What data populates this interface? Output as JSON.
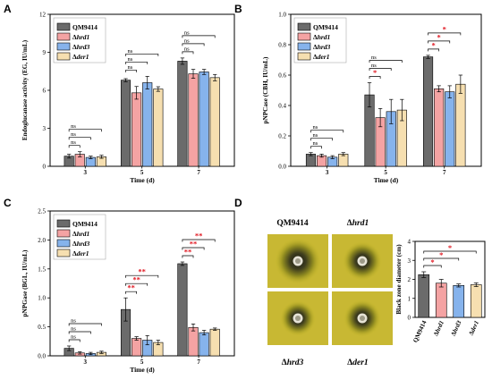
{
  "legend": [
    "QM9414",
    "Δhrd1",
    "Δhrd3",
    "Δder1"
  ],
  "colors": [
    "#6b6b6b",
    "#f4a3a3",
    "#86b3ec",
    "#f6dfb0"
  ],
  "chart_data": [
    {
      "panel": "A",
      "type": "bar",
      "xlabel": "Time (d)",
      "ylabel": "Endoglucanase activity (EG, IU/mL)",
      "categories": [
        "3",
        "5",
        "7"
      ],
      "ylim": [
        0,
        12
      ],
      "yticks": [
        "0",
        "3",
        "6",
        "9",
        "12"
      ],
      "series": [
        {
          "name": "QM9414",
          "values": [
            0.8,
            6.8,
            8.3
          ],
          "errors": [
            0.15,
            0.12,
            0.25
          ]
        },
        {
          "name": "Δhrd1",
          "values": [
            0.95,
            5.8,
            7.3
          ],
          "errors": [
            0.2,
            0.5,
            0.35
          ]
        },
        {
          "name": "Δhrd3",
          "values": [
            0.7,
            6.6,
            7.45
          ],
          "errors": [
            0.1,
            0.5,
            0.2
          ]
        },
        {
          "name": "Δder1",
          "values": [
            0.75,
            6.1,
            7.0
          ],
          "errors": [
            0.12,
            0.18,
            0.25
          ]
        }
      ],
      "significance": [
        {
          "cat": 0,
          "from": 0,
          "to": 1,
          "label": "ns",
          "level": 0
        },
        {
          "cat": 0,
          "from": 0,
          "to": 2,
          "label": "ns",
          "level": 1
        },
        {
          "cat": 0,
          "from": 0,
          "to": 3,
          "label": "ns",
          "level": 2
        },
        {
          "cat": 1,
          "from": 0,
          "to": 1,
          "label": "ns",
          "level": 0
        },
        {
          "cat": 1,
          "from": 0,
          "to": 2,
          "label": "ns",
          "level": 1
        },
        {
          "cat": 1,
          "from": 0,
          "to": 3,
          "label": "ns",
          "level": 2
        },
        {
          "cat": 2,
          "from": 0,
          "to": 1,
          "label": "ns",
          "level": 0
        },
        {
          "cat": 2,
          "from": 0,
          "to": 2,
          "label": "ns",
          "level": 1
        },
        {
          "cat": 2,
          "from": 0,
          "to": 3,
          "label": "ns",
          "level": 2
        }
      ]
    },
    {
      "panel": "B",
      "type": "bar",
      "xlabel": "Time (d)",
      "ylabel": "pNPCase (CBH, IU/mL)",
      "categories": [
        "3",
        "5",
        "7"
      ],
      "ylim": [
        0,
        1.0
      ],
      "yticks": [
        "0.0",
        "0.2",
        "0.4",
        "0.6",
        "0.8",
        "1.0"
      ],
      "series": [
        {
          "name": "QM9414",
          "values": [
            0.08,
            0.47,
            0.72
          ],
          "errors": [
            0.01,
            0.08,
            0.01
          ]
        },
        {
          "name": "Δhrd1",
          "values": [
            0.07,
            0.32,
            0.51
          ],
          "errors": [
            0.01,
            0.06,
            0.02
          ]
        },
        {
          "name": "Δhrd3",
          "values": [
            0.06,
            0.36,
            0.49
          ],
          "errors": [
            0.01,
            0.08,
            0.04
          ]
        },
        {
          "name": "Δder1",
          "values": [
            0.08,
            0.37,
            0.54
          ],
          "errors": [
            0.01,
            0.07,
            0.06
          ]
        }
      ],
      "significance": [
        {
          "cat": 0,
          "from": 0,
          "to": 1,
          "label": "ns",
          "level": 0
        },
        {
          "cat": 0,
          "from": 0,
          "to": 2,
          "label": "ns",
          "level": 1
        },
        {
          "cat": 0,
          "from": 0,
          "to": 3,
          "label": "ns",
          "level": 2
        },
        {
          "cat": 1,
          "from": 0,
          "to": 1,
          "label": "*",
          "level": 0
        },
        {
          "cat": 1,
          "from": 0,
          "to": 2,
          "label": "ns",
          "level": 1
        },
        {
          "cat": 1,
          "from": 0,
          "to": 3,
          "label": "ns",
          "level": 2
        },
        {
          "cat": 2,
          "from": 0,
          "to": 1,
          "label": "*",
          "level": 0
        },
        {
          "cat": 2,
          "from": 0,
          "to": 2,
          "label": "*",
          "level": 1
        },
        {
          "cat": 2,
          "from": 0,
          "to": 3,
          "label": "*",
          "level": 2
        }
      ]
    },
    {
      "panel": "C",
      "type": "bar",
      "xlabel": "Time (d)",
      "ylabel": "pNPGase (BGL, IU/mL)",
      "categories": [
        "3",
        "5",
        "7"
      ],
      "ylim": [
        0,
        2.5
      ],
      "yticks": [
        "0.0",
        "0.5",
        "1.0",
        "1.5",
        "2.0",
        "2.5"
      ],
      "series": [
        {
          "name": "QM9414",
          "values": [
            0.13,
            0.8,
            1.59
          ],
          "errors": [
            0.04,
            0.2,
            0.03
          ]
        },
        {
          "name": "Δhrd1",
          "values": [
            0.05,
            0.3,
            0.49
          ],
          "errors": [
            0.02,
            0.03,
            0.06
          ]
        },
        {
          "name": "Δhrd3",
          "values": [
            0.04,
            0.27,
            0.4
          ],
          "errors": [
            0.02,
            0.08,
            0.04
          ]
        },
        {
          "name": "Δder1",
          "values": [
            0.06,
            0.23,
            0.46
          ],
          "errors": [
            0.02,
            0.04,
            0.02
          ]
        }
      ],
      "significance": [
        {
          "cat": 0,
          "from": 0,
          "to": 1,
          "label": "ns",
          "level": 0
        },
        {
          "cat": 0,
          "from": 0,
          "to": 2,
          "label": "ns",
          "level": 1
        },
        {
          "cat": 0,
          "from": 0,
          "to": 3,
          "label": "ns",
          "level": 2
        },
        {
          "cat": 1,
          "from": 0,
          "to": 1,
          "label": "**",
          "level": 0
        },
        {
          "cat": 1,
          "from": 0,
          "to": 2,
          "label": "**",
          "level": 1
        },
        {
          "cat": 1,
          "from": 0,
          "to": 3,
          "label": "**",
          "level": 2
        },
        {
          "cat": 2,
          "from": 0,
          "to": 1,
          "label": "**",
          "level": 0
        },
        {
          "cat": 2,
          "from": 0,
          "to": 2,
          "label": "**",
          "level": 1
        },
        {
          "cat": 2,
          "from": 0,
          "to": 3,
          "label": "**",
          "level": 2
        }
      ]
    },
    {
      "panel": "D",
      "type": "bar",
      "xlabel": "",
      "ylabel": "Black zone diameter (cm)",
      "categories": [
        "QM9414",
        "Δhrd1",
        "Δhrd3",
        "Δder1"
      ],
      "ylim": [
        0,
        4
      ],
      "yticks": [
        "0",
        "1",
        "2",
        "3",
        "4"
      ],
      "values": [
        2.25,
        1.8,
        1.68,
        1.72
      ],
      "errors": [
        0.15,
        0.2,
        0.08,
        0.1
      ],
      "significance": [
        {
          "from": 0,
          "to": 1,
          "label": "*",
          "level": 0
        },
        {
          "from": 0,
          "to": 2,
          "label": "*",
          "level": 1
        },
        {
          "from": 0,
          "to": 3,
          "label": "*",
          "level": 2
        }
      ]
    }
  ],
  "plates": [
    "QM9414",
    "Δhrd1",
    "Δhrd3",
    "Δder1"
  ],
  "panel_letters": [
    "A",
    "B",
    "C",
    "D"
  ]
}
